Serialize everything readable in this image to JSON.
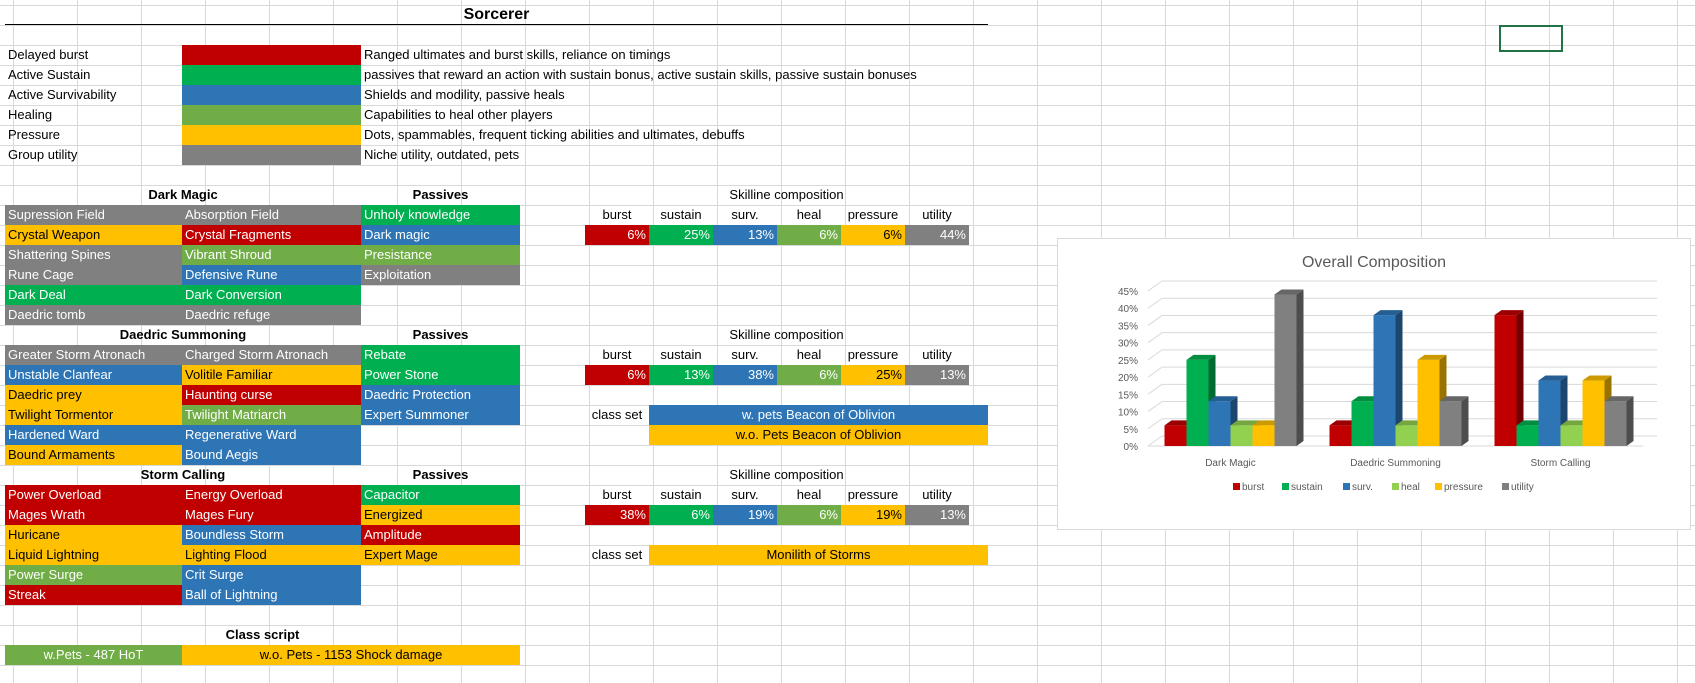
{
  "sheet": {
    "title": "Sorcerer",
    "legend": [
      {
        "name": "Delayed burst",
        "color": "#c00000",
        "desc": "Ranged ultimates and burst skills, reliance on timings"
      },
      {
        "name": "Active Sustain",
        "color": "#00b050",
        "desc": "passives that reward an action with sustain bonus, active sustain skills, passive sustain bonuses"
      },
      {
        "name": "Active Survivability",
        "color": "#2e75b6",
        "desc": "Shields and modility, passive heals"
      },
      {
        "name": "Healing",
        "color": "#70ad47",
        "desc": "Capabilities to heal other players"
      },
      {
        "name": "Pressure",
        "color": "#ffc000",
        "desc": "Dots, spammables, frequent ticking abilities and ultimates, debuffs"
      },
      {
        "name": "Group utility",
        "color": "#808080",
        "desc": "Niche utility, outdated, pets"
      }
    ],
    "lines": [
      {
        "name": "Dark Magic",
        "skills_col1": [
          {
            "label": "Supression Field",
            "cls": "gry"
          },
          {
            "label": "Crystal Weapon",
            "cls": "yel"
          },
          {
            "label": "Shattering Spines",
            "cls": "gry"
          },
          {
            "label": "Rune Cage",
            "cls": "gry"
          },
          {
            "label": "Dark Deal",
            "cls": "grn"
          },
          {
            "label": "Daedric tomb",
            "cls": "gry"
          }
        ],
        "skills_col2": [
          {
            "label": "Absorption Field",
            "cls": "gry"
          },
          {
            "label": "Crystal Fragments",
            "cls": "red"
          },
          {
            "label": "Vibrant Shroud",
            "cls": "lgr"
          },
          {
            "label": "Defensive Rune",
            "cls": "blu"
          },
          {
            "label": "Dark Conversion",
            "cls": "grn"
          },
          {
            "label": "Daedric refuge",
            "cls": "gry"
          }
        ],
        "passives_header": "Passives",
        "passives": [
          {
            "label": "Unholy knowledge",
            "cls": "grn"
          },
          {
            "label": "Dark magic",
            "cls": "blu"
          },
          {
            "label": "Presistance",
            "cls": "lgr"
          },
          {
            "label": "Exploitation",
            "cls": "gry"
          }
        ],
        "composition_header": "Skilline composition",
        "composition": [
          "6%",
          "25%",
          "13%",
          "6%",
          "6%",
          "44%"
        ],
        "classset_label": "",
        "classsets": []
      },
      {
        "name": "Daedric Summoning",
        "skills_col1": [
          {
            "label": "Greater Storm Atronach",
            "cls": "gry"
          },
          {
            "label": "Unstable Clanfear",
            "cls": "blu"
          },
          {
            "label": "Daedric prey",
            "cls": "yel"
          },
          {
            "label": "Twilight Tormentor",
            "cls": "yel"
          },
          {
            "label": "Hardened Ward",
            "cls": "blu"
          },
          {
            "label": "Bound Armaments",
            "cls": "yel"
          }
        ],
        "skills_col2": [
          {
            "label": "Charged Storm Atronach",
            "cls": "gry"
          },
          {
            "label": "Volitile Familiar",
            "cls": "yel"
          },
          {
            "label": "Haunting curse",
            "cls": "red"
          },
          {
            "label": "Twilight Matriarch",
            "cls": "lgr"
          },
          {
            "label": "Regenerative Ward",
            "cls": "blu"
          },
          {
            "label": "Bound Aegis",
            "cls": "blu"
          }
        ],
        "passives_header": "Passives",
        "passives": [
          {
            "label": "Rebate",
            "cls": "grn"
          },
          {
            "label": "Power Stone",
            "cls": "grn"
          },
          {
            "label": "Daedric Protection",
            "cls": "blu"
          },
          {
            "label": "Expert Summoner",
            "cls": "blu"
          }
        ],
        "composition_header": "Skilline composition",
        "composition": [
          "6%",
          "13%",
          "38%",
          "6%",
          "25%",
          "13%"
        ],
        "classset_label": "class set",
        "classsets": [
          {
            "label": "w. pets Beacon of Oblivion",
            "cls": "blu"
          },
          {
            "label": "w.o. Pets Beacon of Oblivion",
            "cls": "yel"
          }
        ]
      },
      {
        "name": "Storm Calling",
        "skills_col1": [
          {
            "label": "Power Overload",
            "cls": "red"
          },
          {
            "label": "Mages Wrath",
            "cls": "red"
          },
          {
            "label": "Huricane",
            "cls": "yel"
          },
          {
            "label": "Liquid Lightning",
            "cls": "yel"
          },
          {
            "label": "Power Surge",
            "cls": "lgr"
          },
          {
            "label": "Streak",
            "cls": "red"
          }
        ],
        "skills_col2": [
          {
            "label": "Energy Overload",
            "cls": "red"
          },
          {
            "label": "Mages Fury",
            "cls": "red"
          },
          {
            "label": "Boundless Storm",
            "cls": "blu"
          },
          {
            "label": "Lighting Flood",
            "cls": "yel"
          },
          {
            "label": "Crit Surge",
            "cls": "blu"
          },
          {
            "label": "Ball of Lightning",
            "cls": "blu"
          }
        ],
        "passives_header": "Passives",
        "passives": [
          {
            "label": "Capacitor",
            "cls": "grn"
          },
          {
            "label": "Energized",
            "cls": "yel"
          },
          {
            "label": "Amplitude",
            "cls": "red"
          },
          {
            "label": "Expert Mage",
            "cls": "yel"
          }
        ],
        "composition_header": "Skilline composition",
        "composition": [
          "38%",
          "6%",
          "19%",
          "6%",
          "19%",
          "13%"
        ],
        "classset_label": "class set",
        "classsets": [
          {
            "label": "Monilith of Storms",
            "cls": "yel"
          }
        ]
      }
    ],
    "composition_columns": [
      "burst",
      "sustain",
      "surv.",
      "heal",
      "pressure",
      "utility"
    ],
    "composition_classes": [
      "red",
      "grn",
      "blu",
      "lgr",
      "yel",
      "gry"
    ],
    "class_script": {
      "header": "Class script",
      "items": [
        {
          "label": "w.Pets - 487 HoT",
          "cls": "lgr"
        },
        {
          "label": "w.o. Pets - 1153 Shock damage",
          "cls": "yel"
        }
      ]
    }
  },
  "chart_data": {
    "type": "bar",
    "title": "Overall Composition",
    "categories": [
      "Dark Magic",
      "Daedric Summoning",
      "Storm Calling"
    ],
    "series": [
      {
        "name": "burst",
        "color": "#c00000",
        "values": [
          6,
          6,
          38
        ]
      },
      {
        "name": "sustain",
        "color": "#00b050",
        "values": [
          25,
          13,
          6
        ]
      },
      {
        "name": "surv.",
        "color": "#2e75b6",
        "values": [
          13,
          38,
          19
        ]
      },
      {
        "name": "heal",
        "color": "#92d050",
        "values": [
          6,
          6,
          6
        ]
      },
      {
        "name": "pressure",
        "color": "#ffc000",
        "values": [
          6,
          25,
          19
        ]
      },
      {
        "name": "utility",
        "color": "#808080",
        "values": [
          44,
          13,
          13
        ]
      }
    ],
    "yticks": [
      "0%",
      "5%",
      "10%",
      "15%",
      "20%",
      "25%",
      "30%",
      "35%",
      "40%",
      "45%"
    ],
    "ylim": [
      0,
      45
    ],
    "grid": true,
    "legend": "bottom",
    "three_d": true
  }
}
